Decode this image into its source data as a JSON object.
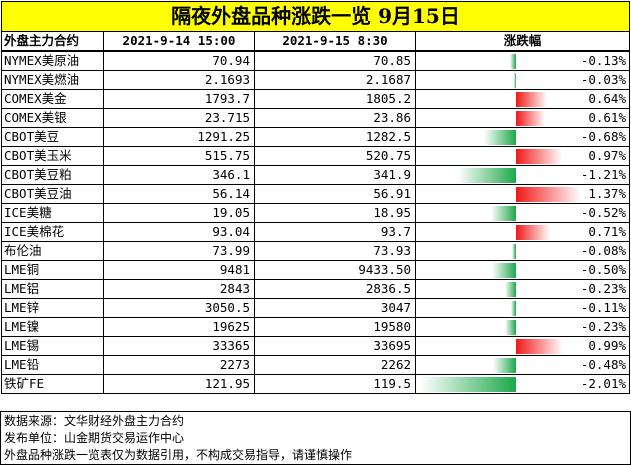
{
  "title": "隔夜外盘品种涨跌一览 9月15日",
  "headers": {
    "name": "外盘主力合约",
    "prev": "2021-9-14 15:00",
    "cur": "2021-9-15 8:30",
    "change": "涨跌幅"
  },
  "rows": [
    {
      "name": "NYMEX美原油",
      "prev": "70.94",
      "cur": "70.85",
      "change": "-0.13%",
      "change_value": -0.13
    },
    {
      "name": "NYMEX美燃油",
      "prev": "2.1693",
      "cur": "2.1687",
      "change": "-0.03%",
      "change_value": -0.03
    },
    {
      "name": "COMEX美金",
      "prev": "1793.7",
      "cur": "1805.2",
      "change": "0.64%",
      "change_value": 0.64
    },
    {
      "name": "COMEX美银",
      "prev": "23.715",
      "cur": "23.86",
      "change": "0.61%",
      "change_value": 0.61
    },
    {
      "name": "CBOT美豆",
      "prev": "1291.25",
      "cur": "1282.5",
      "change": "-0.68%",
      "change_value": -0.68
    },
    {
      "name": "CBOT美玉米",
      "prev": "515.75",
      "cur": "520.75",
      "change": "0.97%",
      "change_value": 0.97
    },
    {
      "name": "CBOT美豆粕",
      "prev": "346.1",
      "cur": "341.9",
      "change": "-1.21%",
      "change_value": -1.21
    },
    {
      "name": "CBOT美豆油",
      "prev": "56.14",
      "cur": "56.91",
      "change": "1.37%",
      "change_value": 1.37
    },
    {
      "name": "ICE美糖",
      "prev": "19.05",
      "cur": "18.95",
      "change": "-0.52%",
      "change_value": -0.52
    },
    {
      "name": "ICE美棉花",
      "prev": "93.04",
      "cur": "93.7",
      "change": "0.71%",
      "change_value": 0.71
    },
    {
      "name": "布伦油",
      "prev": "73.99",
      "cur": "73.93",
      "change": "-0.08%",
      "change_value": -0.08
    },
    {
      "name": "LME铜",
      "prev": "9481",
      "cur": "9433.50",
      "change": "-0.50%",
      "change_value": -0.5
    },
    {
      "name": "LME铝",
      "prev": "2843",
      "cur": "2836.5",
      "change": "-0.23%",
      "change_value": -0.23
    },
    {
      "name": "LME锌",
      "prev": "3050.5",
      "cur": "3047",
      "change": "-0.11%",
      "change_value": -0.11
    },
    {
      "name": "LME镍",
      "prev": "19625",
      "cur": "19580",
      "change": "-0.23%",
      "change_value": -0.23
    },
    {
      "name": "LME锡",
      "prev": "33365",
      "cur": "33695",
      "change": "0.99%",
      "change_value": 0.99
    },
    {
      "name": "LME铅",
      "prev": "2273",
      "cur": "2262",
      "change": "-0.48%",
      "change_value": -0.48
    },
    {
      "name": "铁矿FE",
      "prev": "121.95",
      "cur": "119.5",
      "change": "-2.01%",
      "change_value": -2.01
    }
  ],
  "footer": [
    "数据来源：文华财经外盘主力合约",
    "发布单位：山金期货交易运作中心",
    "外盘品种涨跌一览表仅为数据引用，不构成交易指导，请谨慎操作"
  ],
  "colors": {
    "title_bg": "#ffff00",
    "negative_bar": "#1ea84a",
    "positive_bar": "#f01818"
  }
}
